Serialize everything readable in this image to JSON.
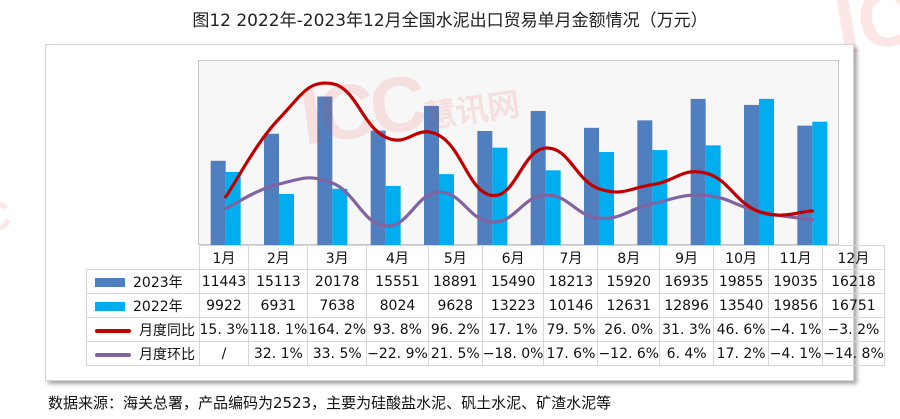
{
  "title": "图12  2022年-2023年12月全国水泥出口贸易单月金额情况（万元）",
  "watermark": {
    "logo": "ICC",
    "text": "慧讯网"
  },
  "footer": "数据来源：海关总署，产品编码为2523，主要为硅酸盐水泥、矾土水泥、矿渣水泥等",
  "colors": {
    "series_2023": "#4f7fbe",
    "series_2022": "#00aeef",
    "yoy_line": "#c00000",
    "mom_line": "#8064a2",
    "plot_bg": "#f7f7f7"
  },
  "table": {
    "header": [
      "1月",
      "2月",
      "3月",
      "4月",
      "5月",
      "6月",
      "7月",
      "8月",
      "9月",
      "10月",
      "11月",
      "12月"
    ],
    "rows": [
      {
        "label": "2023年",
        "type": "bar",
        "color": "#4f7fbe",
        "cells": [
          "11443",
          "15113",
          "20178",
          "15551",
          "18891",
          "15490",
          "18213",
          "15920",
          "16935",
          "19855",
          "19035",
          "16218"
        ]
      },
      {
        "label": "2022年",
        "type": "bar",
        "color": "#00aeef",
        "cells": [
          "9922",
          "6931",
          "7638",
          "8024",
          "9628",
          "13223",
          "10146",
          "12631",
          "12896",
          "13540",
          "19856",
          "16751"
        ]
      },
      {
        "label": "月度同比",
        "type": "line",
        "color": "#c00000",
        "cells": [
          "15. 3%",
          "118. 1%",
          "164. 2%",
          "93. 8%",
          "96. 2%",
          "17. 1%",
          "79. 5%",
          "26. 0%",
          "31. 3%",
          "46. 6%",
          "−4. 1%",
          "−3. 2%"
        ]
      },
      {
        "label": "月度环比",
        "type": "line",
        "color": "#8064a2",
        "cells": [
          "/",
          "32. 1%",
          "33. 5%",
          "−22. 9%",
          "21. 5%",
          "−18. 0%",
          "17. 6%",
          "−12. 6%",
          "6. 4%",
          "17. 2%",
          "−4. 1%",
          "−14. 8%"
        ]
      }
    ]
  },
  "chart_data": {
    "type": "bar",
    "title": "图12  2022年-2023年12月全国水泥出口贸易单月金额情况（万元）",
    "xlabel": "",
    "ylabel": "万元",
    "categories": [
      "1月",
      "2月",
      "3月",
      "4月",
      "5月",
      "6月",
      "7月",
      "8月",
      "9月",
      "10月",
      "11月",
      "12月"
    ],
    "series": [
      {
        "name": "2023年",
        "type": "bar",
        "values": [
          11443,
          15113,
          20178,
          15551,
          18891,
          15490,
          18213,
          15920,
          16935,
          19855,
          19035,
          16218
        ]
      },
      {
        "name": "2022年",
        "type": "bar",
        "values": [
          9922,
          6931,
          7638,
          8024,
          9628,
          13223,
          10146,
          12631,
          12896,
          13540,
          19856,
          16751
        ]
      },
      {
        "name": "月度同比",
        "type": "line",
        "unit": "%",
        "values": [
          15.3,
          118.1,
          164.2,
          93.8,
          96.2,
          17.1,
          79.5,
          26.0,
          31.3,
          46.6,
          -4.1,
          -3.2
        ]
      },
      {
        "name": "月度环比",
        "type": "line",
        "unit": "%",
        "values": [
          null,
          32.1,
          33.5,
          -22.9,
          21.5,
          -18.0,
          17.6,
          -12.6,
          6.4,
          17.2,
          -4.1,
          -14.8
        ]
      }
    ],
    "ylim": [
      0,
      25000
    ],
    "grid": false,
    "axes_hidden": true,
    "legend_position": "data-table-below"
  }
}
